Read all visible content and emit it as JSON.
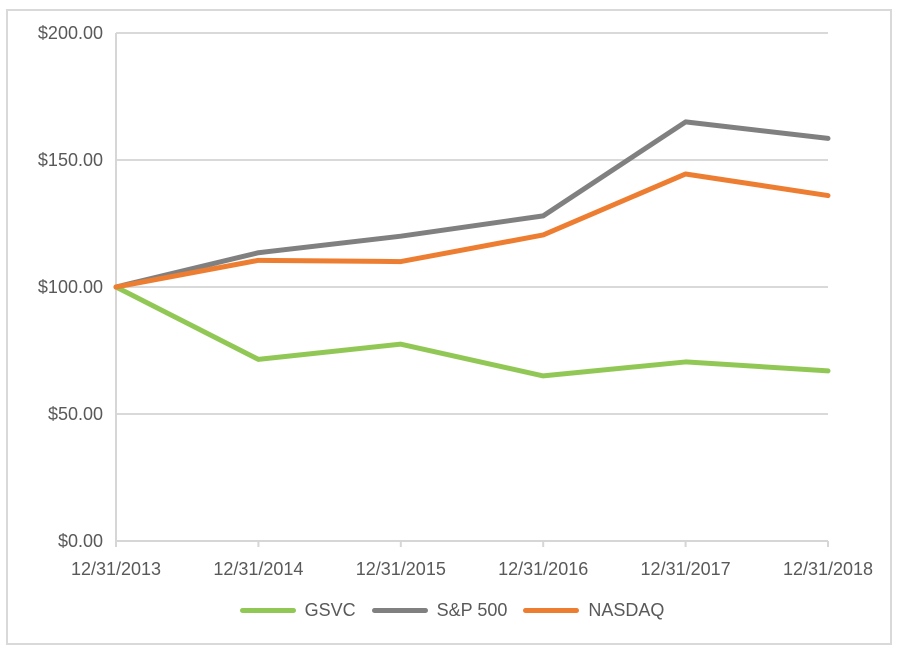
{
  "chart_data": {
    "type": "line",
    "title": "",
    "xlabel": "",
    "ylabel": "",
    "categories": [
      "12/31/2013",
      "12/31/2014",
      "12/31/2015",
      "12/31/2016",
      "12/31/2017",
      "12/31/2018"
    ],
    "series": [
      {
        "name": "GSVC",
        "color": "#91C855",
        "values": [
          100.0,
          71.5,
          77.5,
          65.0,
          70.5,
          67.0
        ]
      },
      {
        "name": "S&P 500",
        "color": "#808080",
        "values": [
          100.0,
          113.5,
          120.0,
          128.0,
          165.0,
          158.5
        ]
      },
      {
        "name": "NASDAQ",
        "color": "#ED7D31",
        "values": [
          100.0,
          110.5,
          110.0,
          120.5,
          144.5,
          136.0
        ]
      }
    ],
    "ylim": [
      0,
      200
    ],
    "y_ticks": [
      {
        "value": 0,
        "label": "$0.00"
      },
      {
        "value": 50,
        "label": "$50.00"
      },
      {
        "value": 100,
        "label": "$100.00"
      },
      {
        "value": 150,
        "label": "$150.00"
      },
      {
        "value": 200,
        "label": "$200.00"
      }
    ],
    "grid": true,
    "legend_position": "bottom"
  },
  "colors": {
    "grid": "#D9D9D9",
    "axis": "#D6D6D6",
    "text": "#595959",
    "frame_border": "#D9D9D9",
    "background": "#FFFFFF"
  }
}
